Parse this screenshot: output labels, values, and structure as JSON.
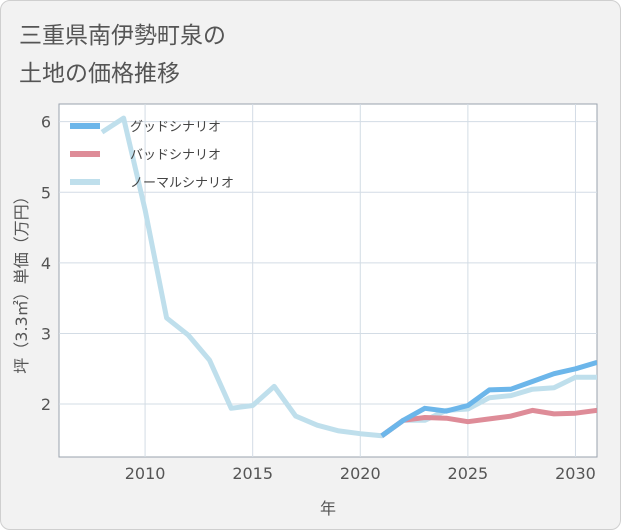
{
  "chart_data": {
    "type": "line",
    "title": "三重県南伊勢町泉の\n土地の価格推移",
    "xlabel": "年",
    "ylabel": "坪（3.3㎡）単価（万円）",
    "xlim": [
      2006,
      2031
    ],
    "ylim": [
      1.25,
      6.25
    ],
    "xticks": [
      2010,
      2015,
      2020,
      2025,
      2030
    ],
    "yticks": [
      2,
      3,
      4,
      5,
      6
    ],
    "grid": true,
    "legend_position": "top-left",
    "series": [
      {
        "name": "グッドシナリオ",
        "color": "#6cb6ea",
        "x": [
          2021,
          2022,
          2023,
          2024,
          2025,
          2026,
          2027,
          2028,
          2029,
          2030,
          2031
        ],
        "y": [
          1.55,
          1.77,
          1.94,
          1.9,
          1.98,
          2.2,
          2.21,
          2.32,
          2.43,
          2.5,
          2.59
        ]
      },
      {
        "name": "バッドシナリオ",
        "color": "#de8c98",
        "x": [
          2021,
          2022,
          2023,
          2024,
          2025,
          2026,
          2027,
          2028,
          2029,
          2030,
          2031
        ],
        "y": [
          1.55,
          1.77,
          1.81,
          1.8,
          1.75,
          1.79,
          1.83,
          1.91,
          1.86,
          1.87,
          1.91
        ]
      },
      {
        "name": "ノーマルシナリオ",
        "color": "#bfdfec",
        "x": [
          2008,
          2009,
          2010,
          2011,
          2012,
          2013,
          2014,
          2015,
          2016,
          2017,
          2018,
          2019,
          2020,
          2021,
          2022,
          2023,
          2024,
          2025,
          2026,
          2027,
          2028,
          2029,
          2030,
          2031
        ],
        "y": [
          5.85,
          6.05,
          4.75,
          3.22,
          2.98,
          2.62,
          1.94,
          1.98,
          2.25,
          1.83,
          1.7,
          1.62,
          1.58,
          1.55,
          1.77,
          1.77,
          1.91,
          1.93,
          2.09,
          2.12,
          2.21,
          2.23,
          2.38,
          2.38
        ]
      }
    ]
  }
}
